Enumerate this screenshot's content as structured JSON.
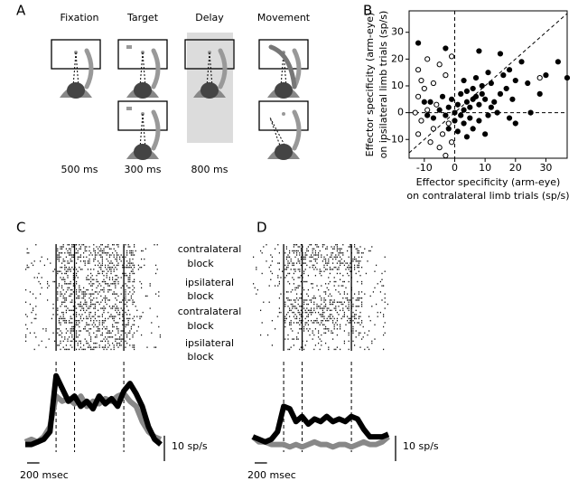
{
  "panels": {
    "a": "A",
    "b": "B",
    "c": "C",
    "d": "D"
  },
  "task": {
    "epochs": [
      {
        "name": "Fixation",
        "duration": "500 ms"
      },
      {
        "name": "Target",
        "duration": "300 ms"
      },
      {
        "name": "Delay",
        "duration": "800 ms"
      },
      {
        "name": "Movement",
        "duration": ""
      }
    ]
  },
  "raster": {
    "block_labels": [
      [
        "contralateral",
        "block"
      ],
      [
        "ipsilateral",
        "block"
      ],
      [
        "contralateral",
        "block"
      ],
      [
        "ipsilateral",
        "block"
      ]
    ]
  },
  "chart_data": [
    {
      "type": "scatter",
      "xlabel": [
        "Effector specificity (arm-eye)",
        "on contralateral limb trials (sp/s)"
      ],
      "ylabel": [
        "Effector specificity (arm-eye)",
        "on ipsilateral limb trials (sp/s)"
      ],
      "xlim": [
        -15,
        37
      ],
      "ylim": [
        -17,
        38
      ],
      "xticks": [
        -10,
        0,
        10,
        20,
        30
      ],
      "yticks": [
        -10,
        0,
        10,
        20,
        30
      ],
      "zero_lines": true,
      "identity_line": true,
      "series": [
        {
          "color": "#000000",
          "marker": "filled",
          "x": [
            -12,
            -3,
            8,
            15,
            34,
            37,
            22,
            18,
            16,
            11,
            20,
            24,
            28,
            9,
            6,
            4,
            2,
            3,
            7,
            10,
            13,
            15,
            17,
            12,
            8,
            5,
            3,
            1,
            -1,
            -2,
            0,
            2,
            5,
            8,
            11,
            14,
            18,
            20,
            6,
            3,
            0,
            -3,
            -5,
            -7,
            -9,
            -8,
            -4,
            4,
            6,
            9,
            1,
            -2,
            4,
            10,
            25,
            30,
            19,
            12,
            7,
            -10
          ],
          "values": [
            26,
            24,
            23,
            22,
            19,
            13,
            19,
            16,
            14,
            15,
            12,
            11,
            7,
            10,
            9,
            8,
            7,
            12,
            6,
            5,
            4,
            7,
            9,
            2,
            3,
            2,
            1,
            3,
            5,
            2,
            0,
            -1,
            -2,
            -3,
            -1,
            0,
            -2,
            -4,
            -6,
            -4,
            -3,
            -1,
            1,
            -2,
            -1,
            4,
            6,
            4,
            5,
            7,
            -7,
            -6,
            -9,
            -8,
            0,
            14,
            5,
            11,
            13,
            4
          ]
        },
        {
          "color": "#ffffff",
          "marker": "open",
          "x": [
            -12,
            -11,
            -10,
            -12,
            -9,
            -11,
            -12,
            -7,
            -8,
            -5,
            -3,
            -1,
            -4,
            -2,
            -6,
            -3,
            -1,
            -5,
            28,
            -9,
            -13,
            -7
          ],
          "values": [
            16,
            12,
            9,
            6,
            1,
            -3,
            -8,
            -6,
            -11,
            -13,
            -16,
            -11,
            -8,
            -4,
            3,
            14,
            21,
            18,
            13,
            20,
            0,
            11
          ]
        }
      ]
    },
    {
      "type": "line",
      "xlim": [
        -500,
        1700
      ],
      "ylim": [
        0,
        32
      ],
      "events": [
        0,
        300,
        1100
      ],
      "x": [
        -500,
        -400,
        -300,
        -200,
        -100,
        0,
        100,
        200,
        300,
        400,
        500,
        600,
        700,
        800,
        900,
        1000,
        1100,
        1200,
        1300,
        1400,
        1500,
        1600,
        1700
      ],
      "series": [
        {
          "color": "#888888",
          "values": [
            4,
            5,
            4,
            6,
            10,
            22,
            20,
            21,
            19,
            22,
            18,
            20,
            19,
            21,
            20,
            22,
            23,
            20,
            18,
            12,
            8,
            6,
            5
          ]
        },
        {
          "color": "#000000",
          "values": [
            3,
            3,
            4,
            5,
            8,
            30,
            25,
            20,
            22,
            18,
            20,
            17,
            22,
            19,
            21,
            18,
            24,
            27,
            23,
            18,
            10,
            5,
            3
          ]
        }
      ],
      "scale_bar": {
        "value": 10,
        "label": "10 sp/s"
      },
      "time_bar": {
        "value": 200,
        "label": "200 msec"
      }
    },
    {
      "type": "line",
      "xlim": [
        -500,
        1700
      ],
      "ylim": [
        0,
        32
      ],
      "events": [
        0,
        300,
        1100
      ],
      "x": [
        -500,
        -400,
        -300,
        -200,
        -100,
        0,
        100,
        200,
        300,
        400,
        500,
        600,
        700,
        800,
        900,
        1000,
        1100,
        1200,
        1300,
        1400,
        1500,
        1600,
        1700
      ],
      "series": [
        {
          "color": "#888888",
          "values": [
            6,
            4,
            4,
            3,
            3,
            3,
            2,
            3,
            2,
            3,
            4,
            3,
            3,
            2,
            3,
            3,
            2,
            3,
            4,
            3,
            3,
            4,
            6
          ]
        },
        {
          "color": "#000000",
          "values": [
            6,
            5,
            4,
            5,
            8,
            18,
            17,
            12,
            14,
            11,
            13,
            12,
            14,
            12,
            13,
            12,
            14,
            13,
            9,
            6,
            6,
            6,
            7
          ]
        }
      ],
      "scale_bar": {
        "value": 10,
        "label": "10 sp/s"
      },
      "time_bar": {
        "value": 200,
        "label": "200 msec"
      }
    }
  ]
}
